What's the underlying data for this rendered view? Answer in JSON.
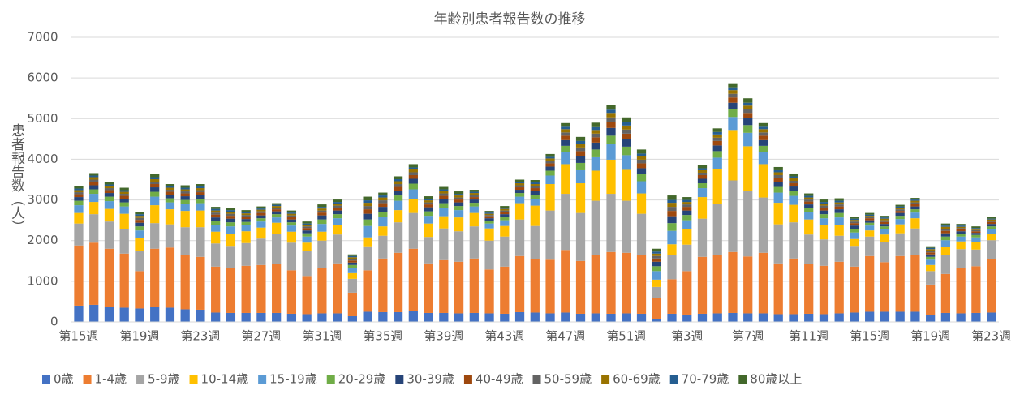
{
  "chart_data": {
    "type": "stacked_bar",
    "title": "年齢別患者報告数の推移",
    "y_label": "患者報告数（人）",
    "categories": [
      "第15週",
      null,
      null,
      null,
      "第19週",
      null,
      null,
      null,
      "第23週",
      null,
      null,
      null,
      "第27週",
      null,
      null,
      null,
      "第31週",
      null,
      null,
      null,
      "第35週",
      null,
      null,
      null,
      "第39週",
      null,
      null,
      null,
      "第43週",
      null,
      null,
      null,
      "第47週",
      null,
      null,
      null,
      "第51週",
      null,
      null,
      null,
      "第3週",
      null,
      null,
      null,
      "第7週",
      null,
      null,
      null,
      "第11週",
      null,
      null,
      null,
      "第15週",
      null,
      null,
      null,
      "第19週",
      null,
      null,
      null,
      "第23週"
    ],
    "ylim": [
      0,
      7000
    ],
    "yticks": [
      0,
      1000,
      2000,
      3000,
      4000,
      5000,
      6000,
      7000
    ],
    "grid": true,
    "legend": "bottom",
    "series": [
      {
        "name": "0歳",
        "color": "#4472c4",
        "values": [
          400,
          420,
          370,
          350,
          330,
          370,
          350,
          310,
          300,
          230,
          220,
          220,
          220,
          220,
          200,
          190,
          210,
          210,
          140,
          250,
          240,
          240,
          260,
          220,
          220,
          210,
          220,
          210,
          200,
          240,
          230,
          210,
          230,
          200,
          210,
          200,
          210,
          200,
          80,
          200,
          180,
          200,
          210,
          220,
          210,
          210,
          190,
          190,
          200,
          190,
          210,
          230,
          250,
          250,
          250,
          250,
          170,
          220,
          210,
          220,
          230
        ]
      },
      {
        "name": "1-4歳",
        "color": "#ed7d31",
        "values": [
          1480,
          1530,
          1430,
          1330,
          920,
          1430,
          1480,
          1340,
          1300,
          1130,
          1110,
          1160,
          1180,
          1200,
          1070,
          940,
          1110,
          1230,
          580,
          1020,
          1320,
          1460,
          1540,
          1220,
          1300,
          1270,
          1340,
          1080,
          1160,
          1380,
          1320,
          1320,
          1540,
          1300,
          1430,
          1520,
          1490,
          1440,
          500,
          850,
          1070,
          1400,
          1440,
          1500,
          1400,
          1490,
          1250,
          1370,
          1220,
          1190,
          1270,
          1130,
          1370,
          1220,
          1370,
          1400,
          750,
          960,
          1110,
          1150,
          1320
        ]
      },
      {
        "name": "5-9歳",
        "color": "#a5a5a5",
        "values": [
          540,
          700,
          670,
          600,
          500,
          630,
          570,
          680,
          730,
          570,
          540,
          560,
          650,
          750,
          680,
          610,
          680,
          710,
          340,
          590,
          560,
          750,
          880,
          650,
          780,
          750,
          790,
          710,
          740,
          900,
          810,
          1210,
          1380,
          1180,
          1340,
          1430,
          1280,
          1020,
          280,
          590,
          650,
          940,
          1250,
          1760,
          1610,
          1360,
          960,
          890,
          730,
          650,
          640,
          510,
          480,
          500,
          560,
          650,
          330,
          460,
          470,
          410,
          460
        ]
      },
      {
        "name": "10-14歳",
        "color": "#ffc000",
        "values": [
          260,
          300,
          310,
          380,
          320,
          440,
          370,
          400,
          410,
          290,
          300,
          290,
          270,
          270,
          270,
          210,
          220,
          230,
          140,
          220,
          230,
          300,
          340,
          330,
          300,
          340,
          330,
          300,
          260,
          400,
          500,
          650,
          730,
          730,
          740,
          840,
          760,
          500,
          180,
          270,
          380,
          530,
          860,
          1240,
          1100,
          820,
          530,
          430,
          370,
          350,
          270,
          170,
          150,
          180,
          220,
          250,
          150,
          210,
          190,
          190,
          160
        ]
      },
      {
        "name": "15-19歳",
        "color": "#5b9bd5",
        "values": [
          190,
          200,
          190,
          180,
          180,
          210,
          170,
          170,
          180,
          170,
          180,
          150,
          150,
          130,
          150,
          150,
          190,
          170,
          130,
          280,
          230,
          230,
          240,
          190,
          200,
          180,
          160,
          120,
          140,
          160,
          170,
          210,
          290,
          320,
          330,
          380,
          360,
          300,
          210,
          330,
          220,
          220,
          280,
          320,
          330,
          290,
          250,
          220,
          180,
          170,
          180,
          160,
          120,
          130,
          130,
          140,
          130,
          160,
          120,
          110,
          110
        ]
      },
      {
        "name": "20-29歳",
        "color": "#70ad47",
        "values": [
          110,
          110,
          110,
          100,
          100,
          120,
          100,
          100,
          110,
          100,
          100,
          80,
          80,
          80,
          80,
          80,
          110,
          100,
          70,
          160,
          130,
          130,
          140,
          110,
          120,
          100,
          90,
          70,
          80,
          90,
          100,
          120,
          160,
          180,
          190,
          210,
          210,
          170,
          120,
          190,
          130,
          120,
          160,
          190,
          190,
          160,
          140,
          120,
          100,
          100,
          110,
          90,
          70,
          70,
          80,
          80,
          70,
          90,
          70,
          60,
          70
        ]
      },
      {
        "name": "30-39歳",
        "color": "#264478",
        "values": [
          90,
          100,
          90,
          90,
          90,
          110,
          90,
          90,
          90,
          80,
          90,
          70,
          70,
          70,
          70,
          70,
          100,
          90,
          60,
          140,
          120,
          120,
          120,
          100,
          100,
          90,
          80,
          60,
          70,
          80,
          90,
          100,
          140,
          160,
          170,
          190,
          180,
          150,
          110,
          170,
          110,
          110,
          140,
          160,
          170,
          140,
          120,
          110,
          90,
          90,
          90,
          80,
          60,
          60,
          70,
          70,
          60,
          80,
          60,
          50,
          60
        ]
      },
      {
        "name": "40-49歳",
        "color": "#9e480e",
        "values": [
          70,
          80,
          70,
          70,
          70,
          80,
          70,
          70,
          70,
          70,
          70,
          60,
          60,
          50,
          60,
          60,
          70,
          70,
          50,
          110,
          90,
          90,
          90,
          70,
          80,
          70,
          60,
          50,
          50,
          60,
          70,
          80,
          110,
          130,
          130,
          150,
          140,
          120,
          80,
          130,
          90,
          90,
          110,
          130,
          130,
          110,
          100,
          80,
          70,
          70,
          70,
          60,
          50,
          50,
          50,
          60,
          50,
          60,
          50,
          40,
          50
        ]
      },
      {
        "name": "50-59歳",
        "color": "#636363",
        "values": [
          50,
          60,
          50,
          50,
          50,
          60,
          50,
          50,
          50,
          50,
          50,
          40,
          40,
          40,
          40,
          40,
          50,
          50,
          40,
          80,
          70,
          70,
          70,
          50,
          60,
          50,
          50,
          30,
          40,
          50,
          50,
          60,
          80,
          90,
          90,
          110,
          100,
          90,
          60,
          100,
          60,
          60,
          80,
          90,
          90,
          80,
          70,
          60,
          50,
          50,
          50,
          40,
          30,
          40,
          40,
          40,
          40,
          50,
          30,
          30,
          30
        ]
      },
      {
        "name": "60-69歳",
        "color": "#997300",
        "values": [
          50,
          60,
          50,
          50,
          50,
          60,
          50,
          50,
          50,
          50,
          50,
          40,
          40,
          40,
          40,
          40,
          50,
          50,
          40,
          80,
          70,
          70,
          70,
          50,
          60,
          50,
          50,
          30,
          40,
          50,
          50,
          60,
          80,
          90,
          90,
          110,
          100,
          90,
          60,
          100,
          60,
          60,
          80,
          90,
          90,
          80,
          70,
          60,
          50,
          50,
          50,
          40,
          30,
          40,
          40,
          40,
          40,
          50,
          30,
          30,
          30
        ]
      },
      {
        "name": "70-79歳",
        "color": "#255e91",
        "values": [
          40,
          40,
          40,
          40,
          40,
          50,
          40,
          40,
          40,
          40,
          40,
          30,
          30,
          30,
          30,
          30,
          40,
          40,
          30,
          60,
          50,
          50,
          50,
          40,
          40,
          40,
          30,
          30,
          30,
          40,
          40,
          40,
          60,
          70,
          70,
          80,
          80,
          60,
          50,
          70,
          50,
          50,
          60,
          70,
          70,
          60,
          50,
          50,
          40,
          40,
          40,
          30,
          30,
          30,
          30,
          30,
          30,
          30,
          30,
          20,
          20
        ]
      },
      {
        "name": "80歳以上",
        "color": "#43682b",
        "values": [
          60,
          60,
          60,
          60,
          60,
          70,
          50,
          60,
          60,
          50,
          60,
          50,
          50,
          40,
          50,
          50,
          60,
          60,
          40,
          90,
          70,
          70,
          80,
          60,
          60,
          60,
          50,
          40,
          40,
          50,
          60,
          70,
          90,
          100,
          110,
          120,
          120,
          100,
          70,
          110,
          70,
          70,
          90,
          100,
          110,
          90,
          80,
          70,
          60,
          60,
          60,
          50,
          40,
          40,
          40,
          40,
          40,
          50,
          40,
          40,
          40
        ]
      }
    ]
  }
}
